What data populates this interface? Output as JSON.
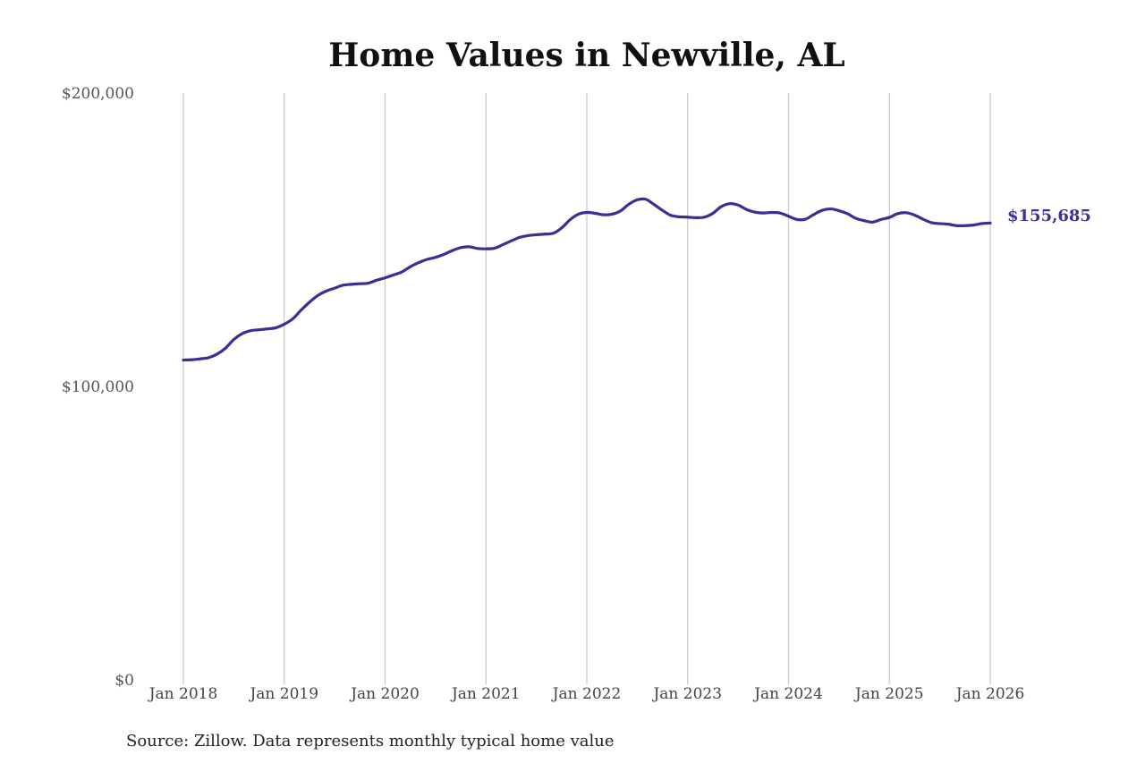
{
  "chart_data": {
    "type": "line",
    "title": "Home Values in Newville, AL",
    "xlabel": "",
    "ylabel": "",
    "ylim": [
      0,
      200000
    ],
    "yticks": [
      {
        "value": 0,
        "label": "$0"
      },
      {
        "value": 100000,
        "label": "$100,000"
      },
      {
        "value": 200000,
        "label": "$200,000"
      }
    ],
    "xticks": [
      {
        "value": "2018-01",
        "label": "Jan 2018"
      },
      {
        "value": "2019-01",
        "label": "Jan 2019"
      },
      {
        "value": "2020-01",
        "label": "Jan 2020"
      },
      {
        "value": "2021-01",
        "label": "Jan 2021"
      },
      {
        "value": "2022-01",
        "label": "Jan 2022"
      },
      {
        "value": "2023-01",
        "label": "Jan 2023"
      },
      {
        "value": "2024-01",
        "label": "Jan 2024"
      },
      {
        "value": "2025-01",
        "label": "Jan 2025"
      },
      {
        "value": "2026-01",
        "label": "Jan 2026"
      }
    ],
    "grid": "vertical",
    "series": [
      {
        "color": "#3b2f93",
        "points": [
          [
            "2018-01",
            109000
          ],
          [
            "2018-02",
            109100
          ],
          [
            "2018-03",
            109400
          ],
          [
            "2018-04",
            109800
          ],
          [
            "2018-05",
            111000
          ],
          [
            "2018-06",
            113000
          ],
          [
            "2018-07",
            116000
          ],
          [
            "2018-08",
            118000
          ],
          [
            "2018-09",
            119000
          ],
          [
            "2018-10",
            119300
          ],
          [
            "2018-11",
            119600
          ],
          [
            "2018-12",
            120000
          ],
          [
            "2019-01",
            121200
          ],
          [
            "2019-02",
            123000
          ],
          [
            "2019-03",
            126000
          ],
          [
            "2019-04",
            128700
          ],
          [
            "2019-05",
            131000
          ],
          [
            "2019-06",
            132500
          ],
          [
            "2019-07",
            133500
          ],
          [
            "2019-08",
            134500
          ],
          [
            "2019-09",
            134800
          ],
          [
            "2019-10",
            135000
          ],
          [
            "2019-11",
            135200
          ],
          [
            "2019-12",
            136200
          ],
          [
            "2020-01",
            137000
          ],
          [
            "2020-02",
            138000
          ],
          [
            "2020-03",
            139000
          ],
          [
            "2020-04",
            140800
          ],
          [
            "2020-05",
            142200
          ],
          [
            "2020-06",
            143300
          ],
          [
            "2020-07",
            144000
          ],
          [
            "2020-08",
            145000
          ],
          [
            "2020-09",
            146300
          ],
          [
            "2020-10",
            147300
          ],
          [
            "2020-11",
            147600
          ],
          [
            "2020-12",
            147000
          ],
          [
            "2021-01",
            146900
          ],
          [
            "2021-02",
            147100
          ],
          [
            "2021-03",
            148300
          ],
          [
            "2021-04",
            149600
          ],
          [
            "2021-05",
            150800
          ],
          [
            "2021-06",
            151400
          ],
          [
            "2021-07",
            151700
          ],
          [
            "2021-08",
            151900
          ],
          [
            "2021-09",
            152200
          ],
          [
            "2021-10",
            154000
          ],
          [
            "2021-11",
            156800
          ],
          [
            "2021-12",
            158700
          ],
          [
            "2022-01",
            159300
          ],
          [
            "2022-02",
            159000
          ],
          [
            "2022-03",
            158500
          ],
          [
            "2022-04",
            158700
          ],
          [
            "2022-05",
            159800
          ],
          [
            "2022-06",
            162100
          ],
          [
            "2022-07",
            163600
          ],
          [
            "2022-08",
            163800
          ],
          [
            "2022-09",
            162000
          ],
          [
            "2022-10",
            160000
          ],
          [
            "2022-11",
            158300
          ],
          [
            "2022-12",
            157800
          ],
          [
            "2023-01",
            157700
          ],
          [
            "2023-02",
            157500
          ],
          [
            "2023-03",
            157700
          ],
          [
            "2023-04",
            159000
          ],
          [
            "2023-05",
            161300
          ],
          [
            "2023-06",
            162300
          ],
          [
            "2023-07",
            161800
          ],
          [
            "2023-08",
            160300
          ],
          [
            "2023-09",
            159400
          ],
          [
            "2023-10",
            159100
          ],
          [
            "2023-11",
            159300
          ],
          [
            "2023-12",
            159100
          ],
          [
            "2024-01",
            158000
          ],
          [
            "2024-02",
            156900
          ],
          [
            "2024-03",
            157000
          ],
          [
            "2024-04",
            158600
          ],
          [
            "2024-05",
            160000
          ],
          [
            "2024-06",
            160500
          ],
          [
            "2024-07",
            159900
          ],
          [
            "2024-08",
            158900
          ],
          [
            "2024-09",
            157300
          ],
          [
            "2024-10",
            156500
          ],
          [
            "2024-11",
            156000
          ],
          [
            "2024-12",
            156900
          ],
          [
            "2025-01",
            157600
          ],
          [
            "2025-02",
            158900
          ],
          [
            "2025-03",
            159200
          ],
          [
            "2025-04",
            158400
          ],
          [
            "2025-05",
            157000
          ],
          [
            "2025-06",
            155800
          ],
          [
            "2025-07",
            155500
          ],
          [
            "2025-08",
            155300
          ],
          [
            "2025-09",
            154800
          ],
          [
            "2025-10",
            154800
          ],
          [
            "2025-11",
            155000
          ],
          [
            "2025-12",
            155500
          ],
          [
            "2026-01",
            155685
          ]
        ]
      }
    ],
    "end_label": "$155,685",
    "source_note": "Source: Zillow. Data represents monthly typical home value"
  }
}
